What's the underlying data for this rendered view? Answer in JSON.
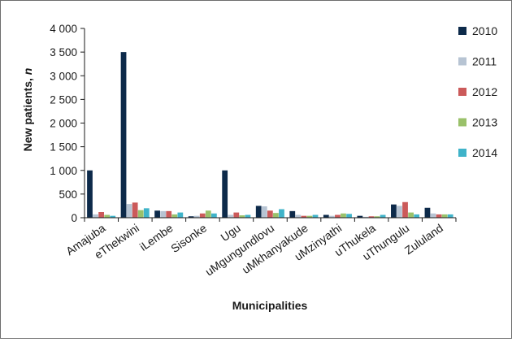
{
  "chart_data": {
    "type": "bar",
    "title": "",
    "xlabel": "Municipalities",
    "ylabel_main": "New patients, ",
    "ylabel_italic": "n",
    "ylim": [
      0,
      4000
    ],
    "yticks": [
      0,
      500,
      1000,
      1500,
      2000,
      2500,
      3000,
      3500,
      4000
    ],
    "ytick_labels": [
      "0",
      "500",
      "1 000",
      "1 500",
      "2 000",
      "2 500",
      "3 000",
      "3 500",
      "4 000"
    ],
    "grid": false,
    "legend_position": "right",
    "categories": [
      "Amajuba",
      "eThekwini",
      "iLembe",
      "Sisonke",
      "Ugu",
      "uMgungundlovu",
      "uMkhanyakude",
      "uMzinyathi",
      "uThukela",
      "uThungulu",
      "Zululand"
    ],
    "series": [
      {
        "name": "2010",
        "color": "#0d2a4a",
        "values": [
          1000,
          3500,
          150,
          30,
          1000,
          250,
          140,
          60,
          40,
          280,
          210
        ]
      },
      {
        "name": "2011",
        "color": "#b7c4d3",
        "values": [
          70,
          290,
          140,
          40,
          60,
          240,
          60,
          40,
          20,
          250,
          90
        ]
      },
      {
        "name": "2012",
        "color": "#cb5a5a",
        "values": [
          120,
          320,
          140,
          90,
          110,
          150,
          40,
          60,
          30,
          330,
          70
        ]
      },
      {
        "name": "2013",
        "color": "#9ac16a",
        "values": [
          60,
          160,
          70,
          150,
          50,
          100,
          40,
          90,
          30,
          110,
          70
        ]
      },
      {
        "name": "2014",
        "color": "#3fb3c9",
        "values": [
          40,
          200,
          110,
          90,
          60,
          180,
          60,
          80,
          60,
          70,
          70
        ]
      }
    ]
  }
}
